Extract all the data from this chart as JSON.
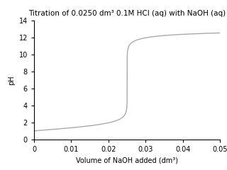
{
  "title": "Titration of 0.0250 dm³ 0.1M HCl (aq) with NaOH (aq)",
  "xlabel": "Volume of NaOH added (dm³)",
  "ylabel": "pH",
  "xlim": [
    0,
    0.05
  ],
  "ylim": [
    0,
    14
  ],
  "yticks": [
    0,
    2,
    4,
    6,
    8,
    10,
    12,
    14
  ],
  "xticks": [
    0,
    0.01,
    0.02,
    0.03,
    0.04,
    0.05
  ],
  "line_color": "#aaaaaa",
  "background_color": "#ffffff",
  "HCl_vol": 0.025,
  "HCl_conc": 0.1,
  "NaOH_conc": 0.1,
  "Kw": 1e-14,
  "title_fontsize": 7.5,
  "label_fontsize": 7,
  "tick_fontsize": 7,
  "linewidth": 1.0
}
